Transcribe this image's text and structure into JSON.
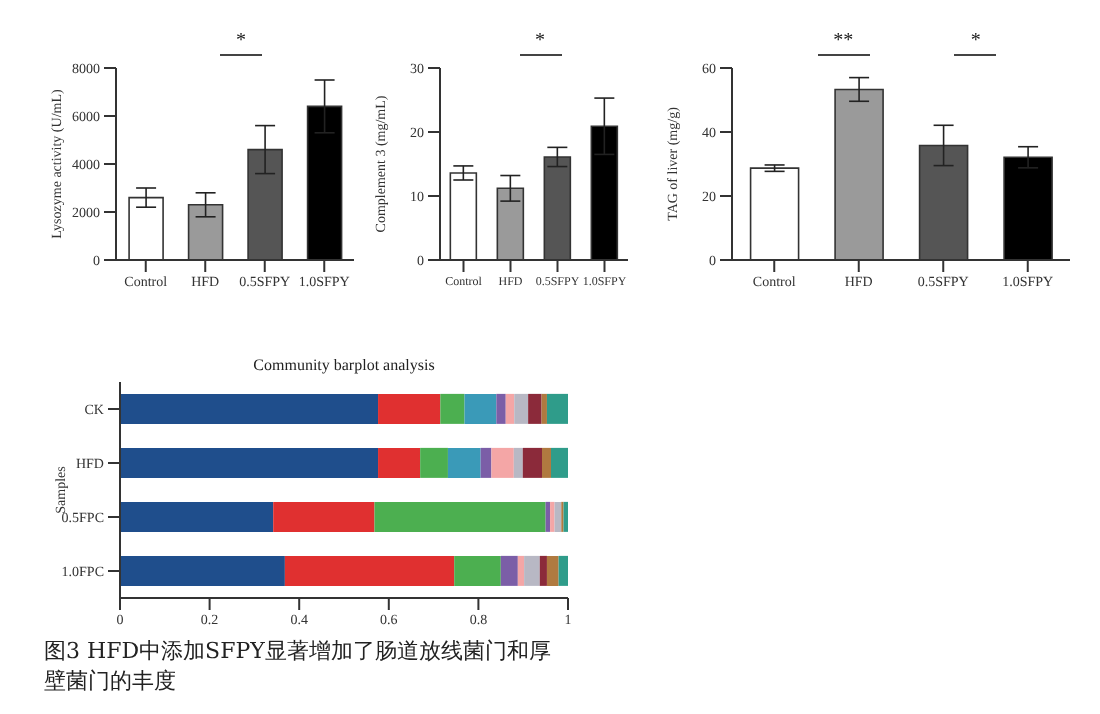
{
  "chart_data": [
    {
      "type": "bar",
      "ylabel": "Lysozyme activity (U/mL)",
      "categories": [
        "Control",
        "HFD",
        "0.5SFPY",
        "1.0SFPY"
      ],
      "values": [
        2600,
        2300,
        4600,
        6400
      ],
      "errors": [
        400,
        500,
        1000,
        1100
      ],
      "colors": [
        "#ffffff",
        "#9a9a9a",
        "#555555",
        "#000000"
      ],
      "ylim": [
        0,
        8000
      ],
      "yticks": [
        0,
        2000,
        4000,
        6000,
        8000
      ],
      "annotations": [
        "*"
      ]
    },
    {
      "type": "bar",
      "ylabel": "Complement 3 (mg/mL)",
      "categories": [
        "Control",
        "HFD",
        "0.5SFPY",
        "1.0SFPY"
      ],
      "values": [
        13.6,
        11.2,
        16.1,
        20.9
      ],
      "errors": [
        1.1,
        2.0,
        1.5,
        4.4
      ],
      "colors": [
        "#ffffff",
        "#9a9a9a",
        "#555555",
        "#000000"
      ],
      "ylim": [
        0,
        30
      ],
      "yticks": [
        0,
        10,
        20,
        30
      ],
      "annotations": [
        "*"
      ]
    },
    {
      "type": "bar",
      "ylabel": "TAG of liver (mg/g)",
      "categories": [
        "Control",
        "HFD",
        "0.5SFPY",
        "1.0SFPY"
      ],
      "values": [
        28.7,
        53.3,
        35.8,
        32.1
      ],
      "errors": [
        1.0,
        3.7,
        6.3,
        3.3
      ],
      "colors": [
        "#ffffff",
        "#9a9a9a",
        "#555555",
        "#000000"
      ],
      "ylim": [
        0,
        60
      ],
      "yticks": [
        0,
        20,
        40,
        60
      ],
      "annotations": [
        "**",
        "*"
      ]
    },
    {
      "type": "bar",
      "orientation": "horizontal",
      "stacked": true,
      "title": "Community barplot analysis",
      "ylabel": "Samples",
      "categories": [
        "CK",
        "HFD",
        "0.5FPC",
        "1.0FPC"
      ],
      "xlim": [
        0,
        1
      ],
      "xticks": [
        0,
        0.2,
        0.4,
        0.6,
        0.8,
        1
      ],
      "annotations": [
        "图3 HFD中添加SFPY显著增加了肠道放线菌门和厚壁菌门的丰度"
      ],
      "series": [
        {
          "color": "#1f4e8c",
          "values": [
            0.576,
            0.576,
            0.342,
            0.368
          ]
        },
        {
          "color": "#e03030",
          "values": [
            0.139,
            0.094,
            0.226,
            0.378
          ]
        },
        {
          "color": "#4caf50",
          "values": [
            0.054,
            0.062,
            0.382,
            0.104
          ]
        },
        {
          "color": "#3a9ab8",
          "values": [
            0.071,
            0.073,
            0,
            0
          ]
        },
        {
          "color": "#7b5ea7",
          "values": [
            0.021,
            0.024,
            0.01,
            0.038
          ]
        },
        {
          "color": "#f4a6a6",
          "values": [
            0.019,
            0.05,
            0.01,
            0.014
          ]
        },
        {
          "color": "#b8b8c4",
          "values": [
            0.031,
            0.02,
            0.015,
            0.035
          ]
        },
        {
          "color": "#8b2a3a",
          "values": [
            0.03,
            0.043,
            0,
            0.016
          ]
        },
        {
          "color": "#b07a40",
          "values": [
            0.012,
            0.02,
            0.005,
            0.026
          ]
        },
        {
          "color": "#2f9c8a",
          "values": [
            0.047,
            0.038,
            0.01,
            0.021
          ]
        }
      ]
    }
  ]
}
